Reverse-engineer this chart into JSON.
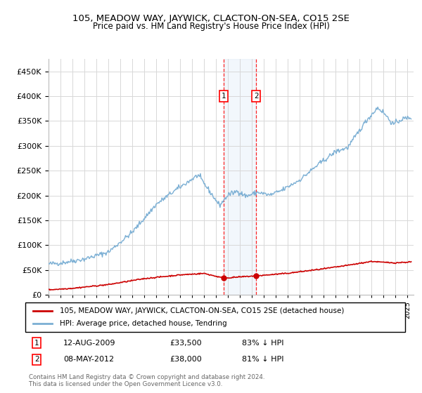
{
  "title": "105, MEADOW WAY, JAYWICK, CLACTON-ON-SEA, CO15 2SE",
  "subtitle": "Price paid vs. HM Land Registry's House Price Index (HPI)",
  "ylim": [
    0,
    475000
  ],
  "yticks": [
    0,
    50000,
    100000,
    150000,
    200000,
    250000,
    300000,
    350000,
    400000,
    450000
  ],
  "ytick_labels": [
    "£0",
    "£50K",
    "£100K",
    "£150K",
    "£200K",
    "£250K",
    "£300K",
    "£350K",
    "£400K",
    "£450K"
  ],
  "background_color": "#ffffff",
  "grid_color": "#d8d8d8",
  "hpi_line_color": "#7bafd4",
  "price_line_color": "#cc0000",
  "transaction1_date": 2009.62,
  "transaction1_price": 33500,
  "transaction2_date": 2012.36,
  "transaction2_price": 38000,
  "legend_house_label": "105, MEADOW WAY, JAYWICK, CLACTON-ON-SEA, CO15 2SE (detached house)",
  "legend_hpi_label": "HPI: Average price, detached house, Tendring",
  "note1_date": "12-AUG-2009",
  "note1_price": "£33,500",
  "note1_pct": "83% ↓ HPI",
  "note2_date": "08-MAY-2012",
  "note2_price": "£38,000",
  "note2_pct": "81% ↓ HPI",
  "copyright_text": "Contains HM Land Registry data © Crown copyright and database right 2024.\nThis data is licensed under the Open Government Licence v3.0.",
  "xmin": 1995.0,
  "xmax": 2025.5
}
